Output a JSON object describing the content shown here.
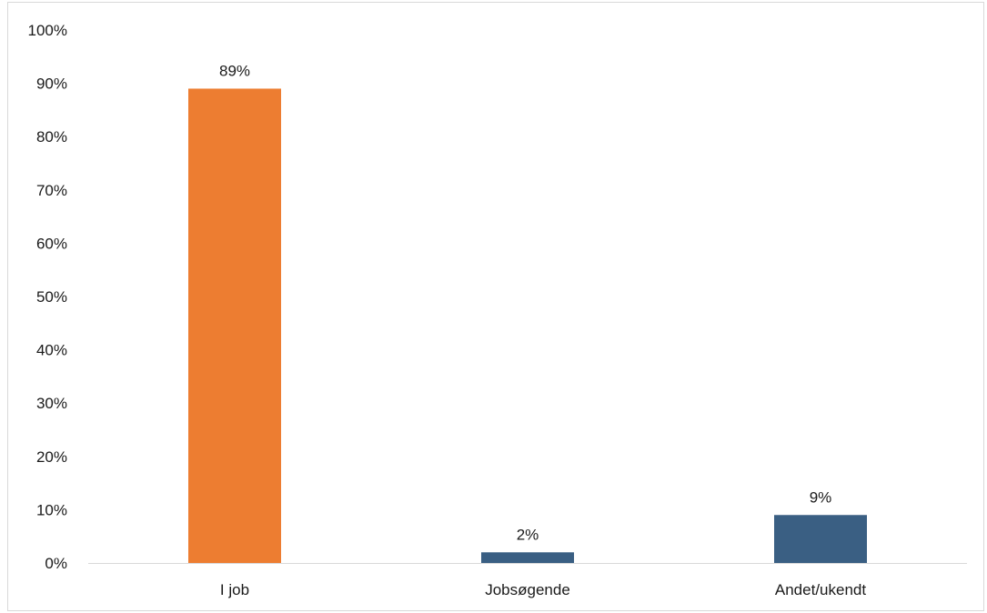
{
  "chart_data": {
    "type": "bar",
    "categories": [
      "I job",
      "Jobsøgende",
      "Andet/ukendt"
    ],
    "values": [
      89,
      2,
      9
    ],
    "value_labels": [
      "89%",
      "2%",
      "9%"
    ],
    "colors": [
      "#ED7D31",
      "#3A5F83",
      "#3A5F83"
    ],
    "title": "",
    "xlabel": "",
    "ylabel": "",
    "ylim": [
      0,
      100
    ],
    "yticks": [
      0,
      10,
      20,
      30,
      40,
      50,
      60,
      70,
      80,
      90,
      100
    ],
    "ytick_labels": [
      "0%",
      "10%",
      "20%",
      "30%",
      "40%",
      "50%",
      "60%",
      "70%",
      "80%",
      "90%",
      "100%"
    ],
    "grid": false,
    "legend": "none"
  }
}
